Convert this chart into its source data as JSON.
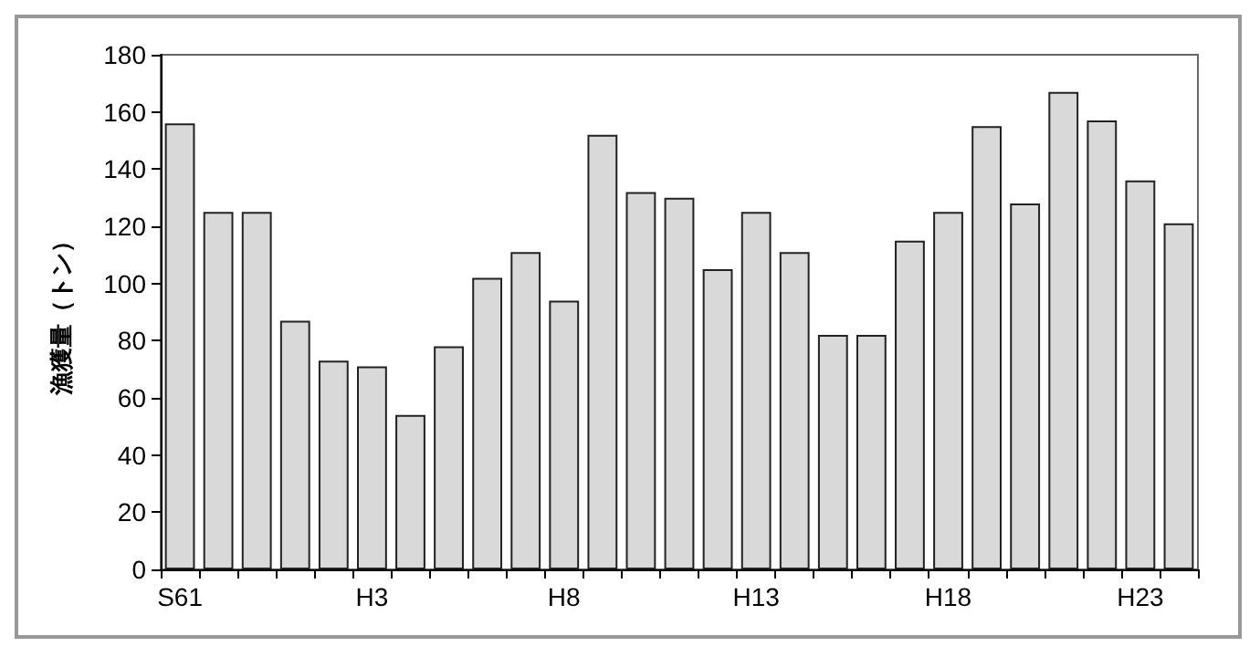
{
  "chart_data": {
    "type": "bar",
    "ylabel": "漁獲量（トン）",
    "categories": [
      "S61",
      null,
      null,
      null,
      null,
      "H3",
      null,
      null,
      null,
      null,
      "H8",
      null,
      null,
      null,
      null,
      "H13",
      null,
      null,
      null,
      null,
      "H18",
      null,
      null,
      null,
      null,
      "H23",
      null
    ],
    "values": [
      156,
      125,
      125,
      87,
      73,
      71,
      54,
      78,
      102,
      111,
      94,
      152,
      132,
      130,
      105,
      125,
      111,
      82,
      82,
      115,
      125,
      155,
      128,
      167,
      157,
      136,
      121
    ],
    "color": "#d9d9d9",
    "ylim": [
      0,
      180
    ],
    "yticks": [
      0,
      20,
      40,
      60,
      80,
      100,
      120,
      140,
      160,
      180
    ],
    "grid": false
  }
}
